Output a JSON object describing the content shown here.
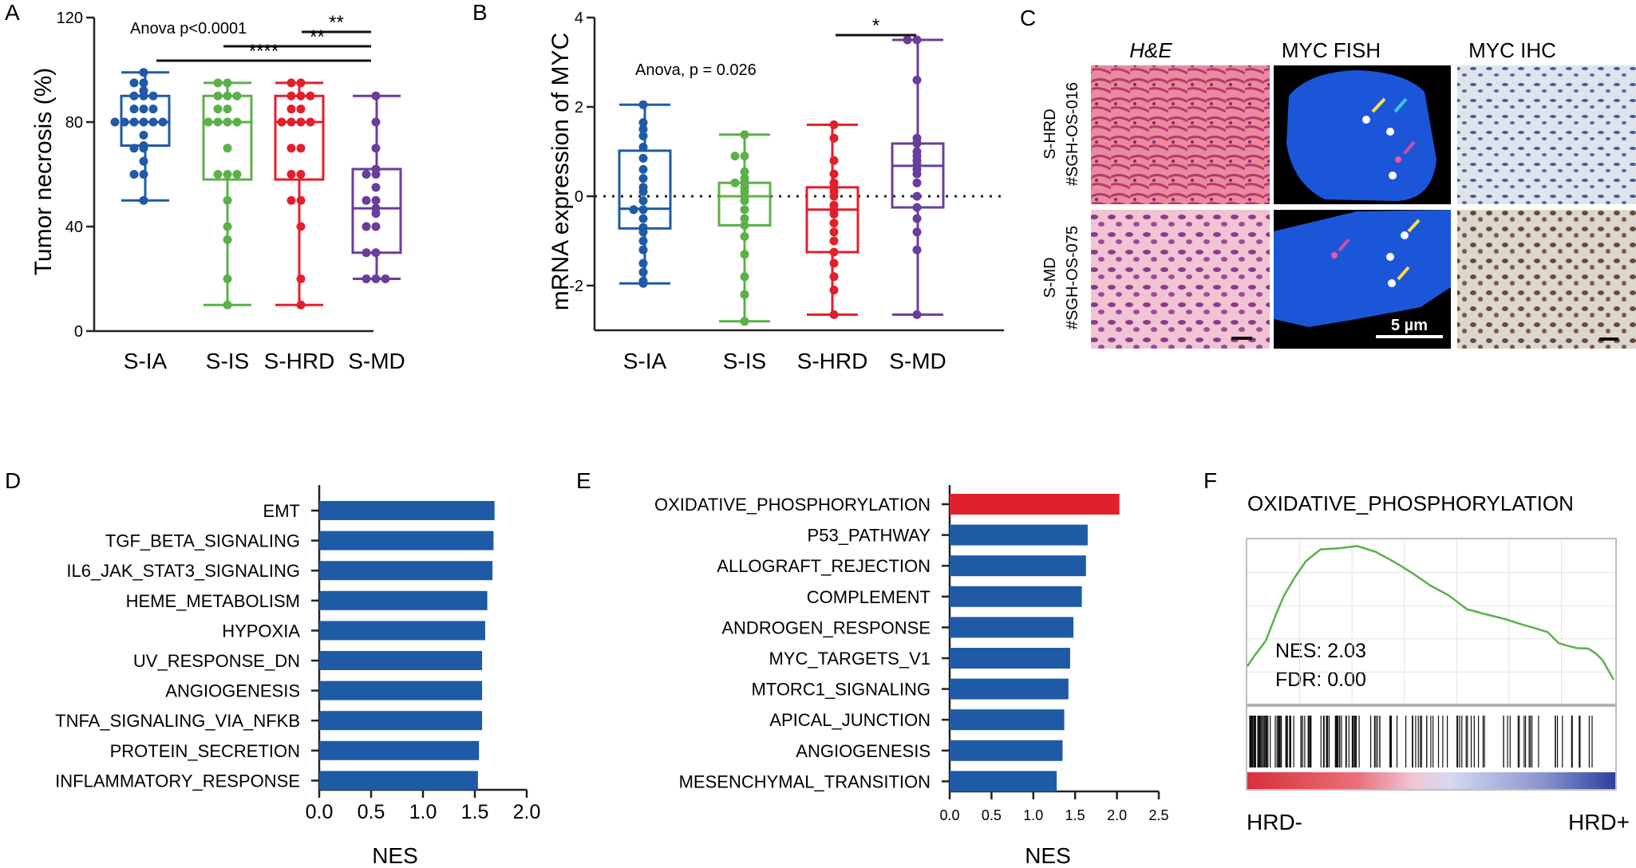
{
  "panel_labels": {
    "A": "A",
    "B": "B",
    "C": "C",
    "D": "D",
    "E": "E",
    "F": "F"
  },
  "colors": {
    "S-IA": "#1f5aa6",
    "S-IS": "#5cb04a",
    "S-HRD": "#e0202b",
    "S-MD": "#6a3d9a",
    "bar_blue": "#1f5aa6",
    "bar_red": "#e0202b",
    "gsea_line": "#5cb04a"
  },
  "chart_data": [
    {
      "id": "A",
      "type": "box",
      "ylabel": "Tumor necrosis (%)",
      "xlabel": "",
      "ylim": [
        0,
        120
      ],
      "yticks": [
        0,
        40,
        80,
        120
      ],
      "categories": [
        "S-IA",
        "S-IS",
        "S-HRD",
        "S-MD"
      ],
      "annotation": "Anova p<0.0001",
      "boxes": [
        {
          "name": "S-IA",
          "min": 50,
          "q1": 71,
          "median": 80,
          "q3": 90,
          "max": 99,
          "points": [
            99,
            95,
            95,
            92,
            90,
            90,
            90,
            85,
            85,
            85,
            80,
            80,
            80,
            80,
            80,
            80,
            75,
            71,
            70,
            70,
            65,
            60,
            60,
            50
          ]
        },
        {
          "name": "S-IS",
          "min": 10,
          "q1": 58,
          "median": 80,
          "q3": 90,
          "max": 95,
          "points": [
            95,
            95,
            90,
            90,
            90,
            85,
            85,
            80,
            80,
            80,
            80,
            70,
            60,
            60,
            60,
            50,
            40,
            35,
            20,
            10
          ]
        },
        {
          "name": "S-HRD",
          "min": 10,
          "q1": 58,
          "median": 80,
          "q3": 90,
          "max": 95,
          "points": [
            95,
            95,
            90,
            90,
            90,
            85,
            85,
            80,
            80,
            80,
            80,
            70,
            70,
            60,
            60,
            50,
            50,
            40,
            20,
            10
          ]
        },
        {
          "name": "S-MD",
          "min": 20,
          "q1": 30,
          "median": 47,
          "q3": 62,
          "max": 90,
          "points": [
            90,
            80,
            70,
            62,
            60,
            60,
            55,
            50,
            50,
            47,
            45,
            40,
            40,
            30,
            30,
            20,
            20,
            20
          ]
        }
      ],
      "significance": [
        {
          "from": "S-IA",
          "to": "S-MD",
          "label": "****"
        },
        {
          "from": "S-IS",
          "to": "S-MD",
          "label": "**"
        },
        {
          "from": "S-HRD",
          "to": "S-MD",
          "label": "**"
        }
      ]
    },
    {
      "id": "B",
      "type": "box",
      "ylabel": "mRNA expression of MYC",
      "xlabel": "",
      "ylim": [
        -3,
        4
      ],
      "yticks": [
        -2,
        0,
        2,
        4
      ],
      "categories": [
        "S-IA",
        "S-IS",
        "S-HRD",
        "S-MD"
      ],
      "annotation": "Anova, p = 0.026",
      "reference_line": 0,
      "boxes": [
        {
          "name": "S-IA",
          "min": -1.95,
          "q1": -0.72,
          "median": -0.28,
          "q3": 1.02,
          "max": 2.05,
          "points": [
            2.05,
            1.65,
            1.5,
            1.35,
            1.1,
            0.85,
            0.6,
            0.4,
            0.2,
            0.1,
            -0.1,
            -0.3,
            -0.3,
            -0.5,
            -0.7,
            -0.8,
            -1.0,
            -1.2,
            -1.5,
            -1.7,
            -1.9,
            -1.95
          ]
        },
        {
          "name": "S-IS",
          "min": -2.8,
          "q1": -0.65,
          "median": 0.0,
          "q3": 0.3,
          "max": 1.38,
          "points": [
            1.38,
            0.9,
            0.9,
            0.55,
            0.4,
            0.3,
            0.3,
            0.2,
            0.1,
            0.0,
            -0.1,
            -0.3,
            -0.5,
            -0.65,
            -0.9,
            -1.3,
            -1.8,
            -2.2,
            -2.8
          ]
        },
        {
          "name": "S-HRD",
          "min": -2.65,
          "q1": -1.25,
          "median": -0.3,
          "q3": 0.2,
          "max": 1.6,
          "points": [
            1.6,
            1.3,
            0.8,
            0.5,
            0.3,
            0.2,
            0.1,
            0.0,
            -0.2,
            -0.3,
            -0.4,
            -0.6,
            -0.8,
            -1.0,
            -1.25,
            -1.5,
            -1.8,
            -2.1,
            -2.65
          ]
        },
        {
          "name": "S-MD",
          "min": -2.65,
          "q1": -0.25,
          "median": 0.68,
          "q3": 1.18,
          "max": 3.5,
          "points": [
            3.5,
            3.5,
            2.6,
            1.3,
            1.2,
            1.18,
            1.0,
            0.9,
            0.8,
            0.7,
            0.6,
            0.5,
            0.3,
            0.0,
            -0.25,
            -0.5,
            -0.8,
            -1.2,
            -2.65
          ]
        }
      ],
      "significance": [
        {
          "from": "S-HRD",
          "to": "S-MD",
          "label": "*"
        }
      ]
    },
    {
      "id": "D",
      "type": "bar",
      "orientation": "horizontal",
      "xlabel": "NES",
      "ylabel": "",
      "xlim": [
        0,
        2.0
      ],
      "xticks": [
        "0.0",
        "0.5",
        "1.0",
        "1.5",
        "2.0"
      ],
      "categories": [
        "EMT",
        "TGF_BETA_SIGNALING",
        "IL6_JAK_STAT3_SIGNALING",
        "HEME_METABOLISM",
        "HYPOXIA",
        "UV_RESPONSE_DN",
        "ANGIOGENESIS",
        "TNFA_SIGNALING_VIA_NFKB",
        "PROTEIN_SECRETION",
        "INFLAMMATORY_RESPONSE"
      ],
      "values": [
        1.69,
        1.68,
        1.67,
        1.62,
        1.6,
        1.57,
        1.57,
        1.57,
        1.54,
        1.53
      ]
    },
    {
      "id": "E",
      "type": "bar",
      "orientation": "horizontal",
      "xlabel": "NES",
      "ylabel": "",
      "xlim": [
        0,
        2.5
      ],
      "xticks": [
        "0.0",
        "0.5",
        "1.0",
        "1.5",
        "2.0",
        "2.5"
      ],
      "categories": [
        "OXIDATIVE_PHOSPHORYLATION",
        "P53_PATHWAY",
        "ALLOGRAFT_REJECTION",
        "COMPLEMENT",
        "ANDROGEN_RESPONSE",
        "MYC_TARGETS_V1",
        "MTORC1_SIGNALING",
        "APICAL_JUNCTION",
        "ANGIOGENESIS",
        "MESENCHYMAL_TRANSITION"
      ],
      "values": [
        2.03,
        1.65,
        1.63,
        1.58,
        1.48,
        1.44,
        1.42,
        1.37,
        1.35,
        1.28
      ],
      "highlight": "OXIDATIVE_PHOSPHORYLATION"
    },
    {
      "id": "F",
      "type": "line",
      "title": "OXIDATIVE_PHOSPHORYLATION",
      "x": [
        0,
        0.02,
        0.05,
        0.08,
        0.1,
        0.13,
        0.16,
        0.2,
        0.25,
        0.3,
        0.35,
        0.4,
        0.45,
        0.5,
        0.55,
        0.6,
        0.62,
        0.65,
        0.7,
        0.75,
        0.78,
        0.82,
        0.85,
        0.88,
        0.9,
        0.93,
        0.95,
        0.97,
        1.0
      ],
      "y": [
        0.1,
        0.2,
        0.3,
        0.5,
        0.62,
        0.75,
        0.86,
        0.94,
        0.99,
        1.0,
        0.95,
        0.87,
        0.78,
        0.68,
        0.6,
        0.54,
        0.52,
        0.49,
        0.45,
        0.4,
        0.37,
        0.33,
        0.29,
        0.26,
        0.24,
        0.23,
        0.19,
        0.13,
        0.0
      ],
      "annotations": [
        "NES: 2.03",
        "FDR: 0.00"
      ],
      "left_label": "HRD-",
      "right_label": "HRD+"
    }
  ],
  "panel_c": {
    "col_headers": [
      "H&E",
      "MYC FISH",
      "MYC IHC"
    ],
    "rows": [
      {
        "group": "S-HRD",
        "sample": "#SGH-OS-016"
      },
      {
        "group": "S-MD",
        "sample": "#SGH-OS-075"
      }
    ],
    "scale_label": "5 µm"
  }
}
